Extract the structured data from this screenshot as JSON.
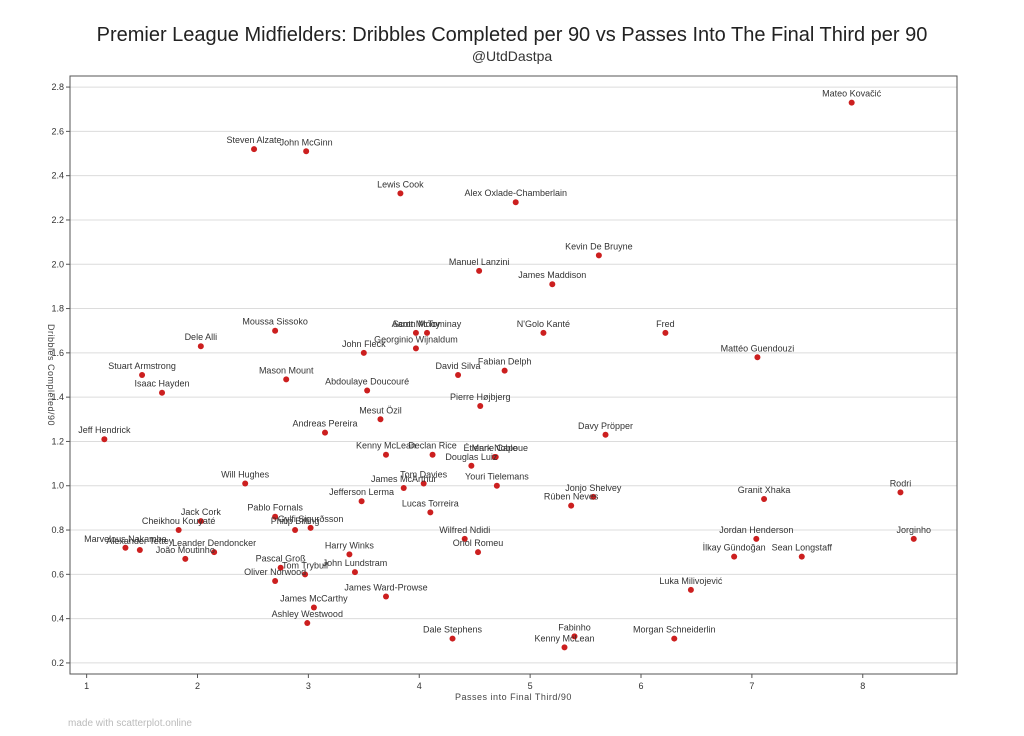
{
  "chart_data": {
    "type": "scatter",
    "title": "Premier League Midfielders: Dribbles Completed per 90 vs Passes Into The Final Third per 90",
    "subtitle": "@UtdDastpa",
    "xlabel": "Passes into Final Third/90",
    "ylabel": "Dribbles Completed/90",
    "xlim": [
      0.85,
      8.85
    ],
    "ylim": [
      0.15,
      2.85
    ],
    "xticks": [
      1,
      2,
      3,
      4,
      5,
      6,
      7,
      8
    ],
    "yticks": [
      0.2,
      0.4,
      0.6,
      0.8,
      1.0,
      1.2,
      1.4,
      1.6,
      1.8,
      2.0,
      2.2,
      2.4,
      2.6,
      2.8
    ],
    "grid": true,
    "point_color": "#cc1f1f",
    "points": [
      {
        "label": "Mateo Kovačić",
        "x": 7.9,
        "y": 2.73
      },
      {
        "label": "Steven Alzate",
        "x": 2.51,
        "y": 2.52
      },
      {
        "label": "John McGinn",
        "x": 2.98,
        "y": 2.51
      },
      {
        "label": "Lewis Cook",
        "x": 3.83,
        "y": 2.32
      },
      {
        "label": "Alex Oxlade-Chamberlain",
        "x": 4.87,
        "y": 2.28
      },
      {
        "label": "Kevin De Bruyne",
        "x": 5.62,
        "y": 2.04
      },
      {
        "label": "Manuel Lanzini",
        "x": 4.54,
        "y": 1.97
      },
      {
        "label": "James Maddison",
        "x": 5.2,
        "y": 1.91
      },
      {
        "label": "Moussa Sissoko",
        "x": 2.7,
        "y": 1.7
      },
      {
        "label": "Scott McTominay",
        "x": 4.07,
        "y": 1.69
      },
      {
        "label": "Aaron Mooy",
        "x": 3.97,
        "y": 1.69
      },
      {
        "label": "N'Golo Kanté",
        "x": 5.12,
        "y": 1.69
      },
      {
        "label": "Fred",
        "x": 6.22,
        "y": 1.69
      },
      {
        "label": "Dele Alli",
        "x": 2.03,
        "y": 1.63
      },
      {
        "label": "Georginio Wijnaldum",
        "x": 3.97,
        "y": 1.62
      },
      {
        "label": "John Fleck",
        "x": 3.5,
        "y": 1.6
      },
      {
        "label": "Mattéo Guendouzi",
        "x": 7.05,
        "y": 1.58
      },
      {
        "label": "Fabian Delph",
        "x": 4.77,
        "y": 1.52
      },
      {
        "label": "Stuart Armstrong",
        "x": 1.5,
        "y": 1.5
      },
      {
        "label": "David Silva",
        "x": 4.35,
        "y": 1.5
      },
      {
        "label": "Mason Mount",
        "x": 2.8,
        "y": 1.48
      },
      {
        "label": "Isaac Hayden",
        "x": 1.68,
        "y": 1.42
      },
      {
        "label": "Abdoulaye Doucouré",
        "x": 3.53,
        "y": 1.43
      },
      {
        "label": "Pierre Højbjerg",
        "x": 4.55,
        "y": 1.36
      },
      {
        "label": "Mesut Özil",
        "x": 3.65,
        "y": 1.3
      },
      {
        "label": "Andreas Pereira",
        "x": 3.15,
        "y": 1.24
      },
      {
        "label": "Davy Pröpper",
        "x": 5.68,
        "y": 1.23
      },
      {
        "label": "Jeff Hendrick",
        "x": 1.16,
        "y": 1.21
      },
      {
        "label": "Kenny McLean",
        "x": 3.7,
        "y": 1.14
      },
      {
        "label": "Declan Rice",
        "x": 4.12,
        "y": 1.14
      },
      {
        "label": "Étienne Capoue",
        "x": 4.69,
        "y": 1.13
      },
      {
        "label": "Mark Noble",
        "x": 4.68,
        "y": 1.13
      },
      {
        "label": "Douglas Luiz",
        "x": 4.47,
        "y": 1.09
      },
      {
        "label": "Will Hughes",
        "x": 2.43,
        "y": 1.01
      },
      {
        "label": "Tom Davies",
        "x": 4.04,
        "y": 1.01
      },
      {
        "label": "Youri Tielemans",
        "x": 4.7,
        "y": 1.0
      },
      {
        "label": "James McArthur",
        "x": 3.86,
        "y": 0.99
      },
      {
        "label": "Rodri",
        "x": 8.34,
        "y": 0.97
      },
      {
        "label": "Jonjo Shelvey",
        "x": 5.57,
        "y": 0.95
      },
      {
        "label": "Granit Xhaka",
        "x": 7.11,
        "y": 0.94
      },
      {
        "label": "Jefferson Lerma",
        "x": 3.48,
        "y": 0.93
      },
      {
        "label": "Rúben Neves",
        "x": 5.37,
        "y": 0.91
      },
      {
        "label": "Lucas Torreira",
        "x": 4.1,
        "y": 0.88
      },
      {
        "label": "Jack Cork",
        "x": 2.03,
        "y": 0.84
      },
      {
        "label": "Pablo Fornals",
        "x": 2.7,
        "y": 0.86
      },
      {
        "label": "Gylfi Sigurðsson",
        "x": 3.02,
        "y": 0.81
      },
      {
        "label": "Philip Billing",
        "x": 2.88,
        "y": 0.8
      },
      {
        "label": "Wilfred Ndidi",
        "x": 4.41,
        "y": 0.76
      },
      {
        "label": "Jordan Henderson",
        "x": 7.04,
        "y": 0.76
      },
      {
        "label": "Jorginho",
        "x": 8.46,
        "y": 0.76
      },
      {
        "label": "Cheikhou Kouyaté",
        "x": 1.83,
        "y": 0.8
      },
      {
        "label": "Marvelous Nakamba",
        "x": 1.35,
        "y": 0.72
      },
      {
        "label": "Alexander Tettey",
        "x": 1.48,
        "y": 0.71
      },
      {
        "label": "Leander Dendoncker",
        "x": 2.15,
        "y": 0.7
      },
      {
        "label": "João Moutinho",
        "x": 1.89,
        "y": 0.67
      },
      {
        "label": "Oriol Romeu",
        "x": 4.53,
        "y": 0.7
      },
      {
        "label": "Harry Winks",
        "x": 3.37,
        "y": 0.69
      },
      {
        "label": "İlkay Gündoğan",
        "x": 6.84,
        "y": 0.68
      },
      {
        "label": "Sean Longstaff",
        "x": 7.45,
        "y": 0.68
      },
      {
        "label": "Pascal Groß",
        "x": 2.75,
        "y": 0.63
      },
      {
        "label": "Tom Trybull",
        "x": 2.97,
        "y": 0.6
      },
      {
        "label": "John Lundstram",
        "x": 3.42,
        "y": 0.61
      },
      {
        "label": "Oliver Norwood",
        "x": 2.7,
        "y": 0.57
      },
      {
        "label": "Luka Milivojević",
        "x": 6.45,
        "y": 0.53
      },
      {
        "label": "James Ward-Prowse",
        "x": 3.7,
        "y": 0.5
      },
      {
        "label": "James McCarthy",
        "x": 3.05,
        "y": 0.45
      },
      {
        "label": "Ashley Westwood",
        "x": 2.99,
        "y": 0.38
      },
      {
        "label": "Dale Stephens",
        "x": 4.3,
        "y": 0.31
      },
      {
        "label": "Fabinho",
        "x": 5.4,
        "y": 0.32
      },
      {
        "label": "Morgan Schneiderlin",
        "x": 6.3,
        "y": 0.31
      },
      {
        "label": "Kenny McLean",
        "x": 5.31,
        "y": 0.27
      }
    ]
  },
  "footer": {
    "credit": "made with scatterplot.online"
  }
}
